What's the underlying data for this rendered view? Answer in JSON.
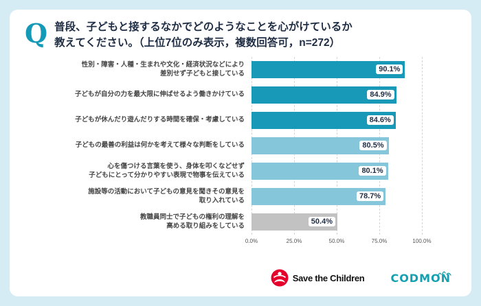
{
  "header": {
    "q_mark": "Q",
    "title_line1": "普段、子どもと接するなかでどのようなことを心がけているか",
    "title_line2": "教えてください。（上位7位のみ表示，複数回答可，n=272）"
  },
  "chart_data": {
    "type": "bar",
    "orientation": "horizontal",
    "title": "普段、子どもと接するなかでどのようなことを心がけているか教えてください。（上位7位のみ表示，複数回答可，n=272）",
    "n": 272,
    "categories": [
      "性別・障害・人種・生まれや文化・経済状況などにより\n差別せず子どもと接している",
      "子どもが自分の力を最大限に伸ばせるよう働きかけている",
      "子どもが休んだり遊んだりする時間を確保・考慮している",
      "子どもの最善の利益は何かを考えて様々な判断をしている",
      "心を傷つける言葉を使う、身体を叩くなどせず\n子どもにとって分かりやすい表現で物事を伝えている",
      "施設等の活動において子どもの意見を聞きその意見を\n取り入れている",
      "教職員同士で子どもの権利の理解を\n高める取り組みをしている"
    ],
    "values": [
      90.1,
      84.9,
      84.6,
      80.5,
      80.1,
      78.7,
      50.4
    ],
    "value_labels": [
      "90.1%",
      "84.9%",
      "84.6%",
      "80.5%",
      "80.1%",
      "78.7%",
      "50.4%"
    ],
    "bar_colors": [
      "#1799b7",
      "#1799b7",
      "#1799b7",
      "#85c6da",
      "#85c6da",
      "#85c6da",
      "#c2c2c2"
    ],
    "xlim": [
      0,
      100
    ],
    "x_ticks": [
      "0.0%",
      "25.0%",
      "50.0%",
      "75.0%",
      "100.0%"
    ],
    "grid": true,
    "legend": false
  },
  "footer": {
    "save_the_children_label": "Save the Children",
    "codmon_label": "CODMON"
  },
  "colors": {
    "page_background": "#d6ecf4",
    "card_background": "#ffffff",
    "accent_teal": "#1499b6",
    "bar_dark": "#1799b7",
    "bar_light": "#85c6da",
    "bar_gray": "#c2c2c2",
    "title_text": "#1f2d44",
    "stc_red": "#e4002b",
    "codmon_teal": "#14a0b0"
  }
}
